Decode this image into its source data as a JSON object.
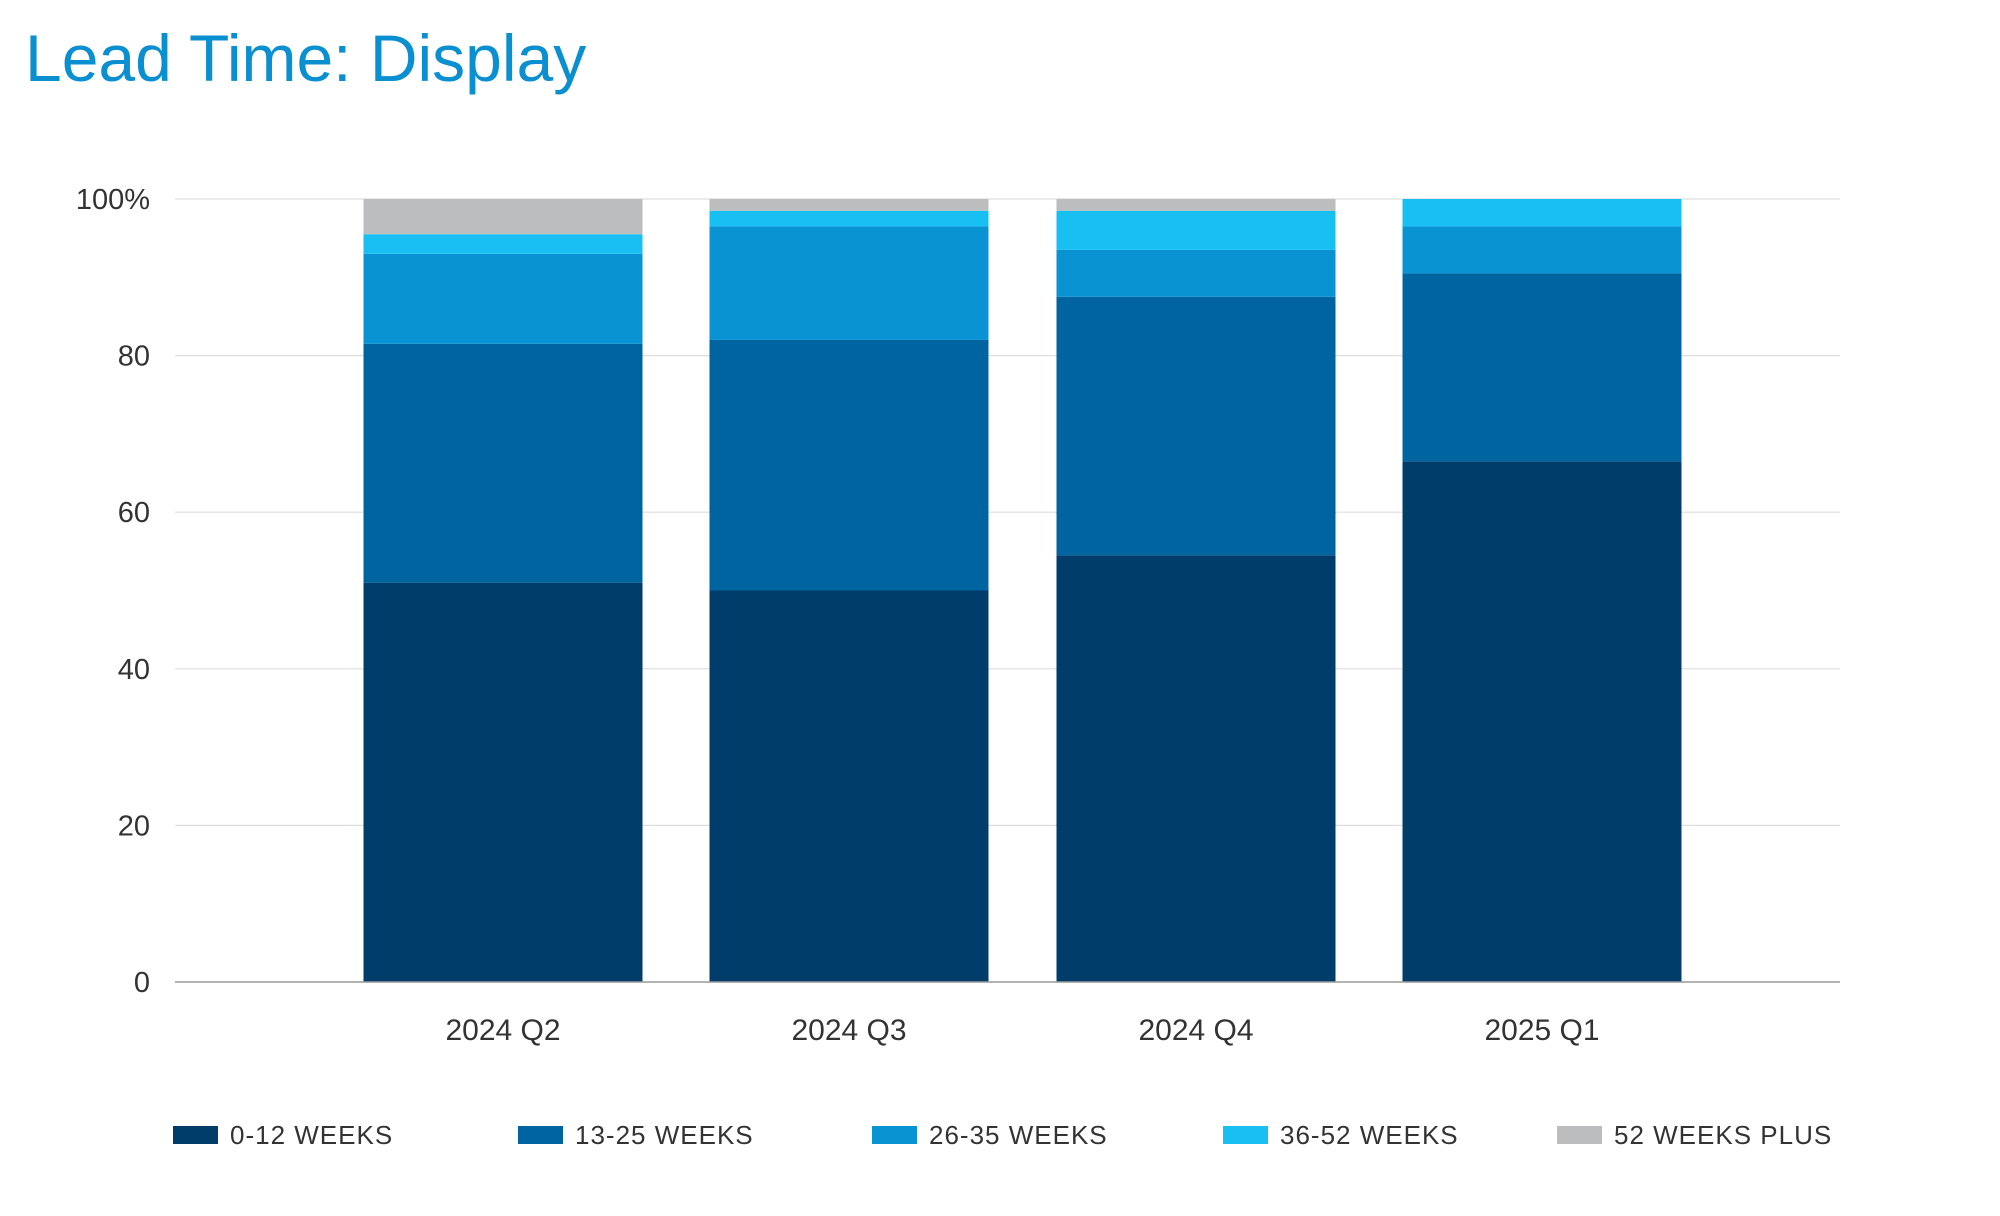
{
  "chart_data": {
    "type": "bar",
    "stacked": true,
    "title": "Lead Time: Display",
    "xlabel": "",
    "ylabel": "",
    "ylim": [
      0,
      100
    ],
    "yticks": [
      0,
      20,
      40,
      60,
      80,
      100
    ],
    "ytick_labels": [
      "0",
      "20",
      "40",
      "60",
      "80",
      "100%"
    ],
    "grid": true,
    "legend_position": "bottom",
    "categories": [
      "2024 Q2",
      "2024 Q3",
      "2024 Q4",
      "2025 Q1"
    ],
    "series": [
      {
        "name": "0-12 WEEKS",
        "color": "#003d6b",
        "values": [
          51,
          50,
          54.5,
          66.5
        ]
      },
      {
        "name": "13-25 WEEKS",
        "color": "#0064a1",
        "values": [
          30.5,
          32,
          33,
          24
        ]
      },
      {
        "name": "26-35 WEEKS",
        "color": "#0a93d2",
        "values": [
          11.5,
          14.5,
          6,
          6
        ]
      },
      {
        "name": "36-52 WEEKS",
        "color": "#17bff2",
        "values": [
          2.5,
          2,
          5,
          3.5
        ]
      },
      {
        "name": "52 WEEKS PLUS",
        "color": "#bcbdbf",
        "values": [
          4.5,
          1.5,
          1.5,
          0
        ]
      }
    ]
  }
}
